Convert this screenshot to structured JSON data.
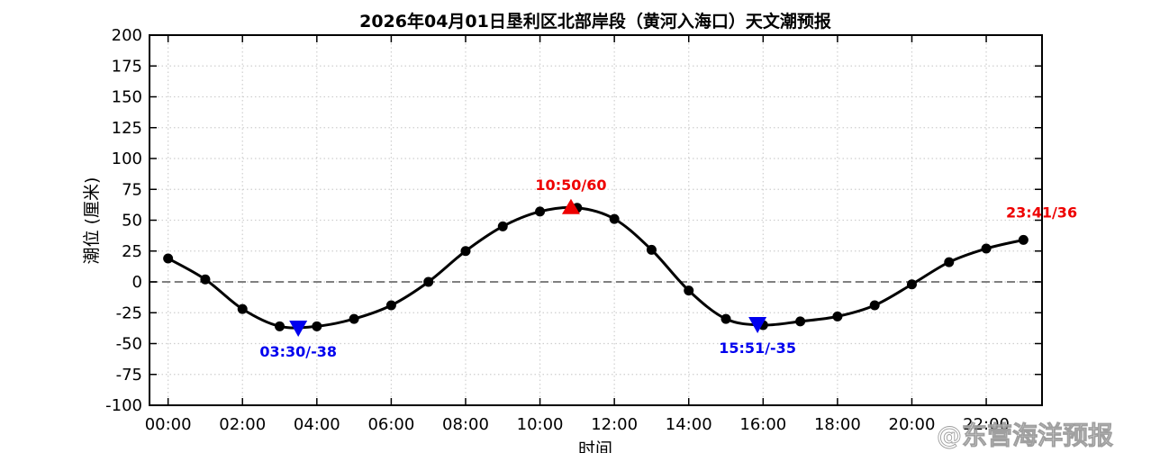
{
  "chart_data": {
    "type": "line",
    "title": "2026年04月01日垦利区北部岸段（黄河入海口）天文潮预报",
    "xlabel": "时间",
    "ylabel": "潮位 (厘米)",
    "xlim": [
      -0.5,
      23.5
    ],
    "ylim": [
      -100,
      200
    ],
    "x_ticks": [
      "00:00",
      "02:00",
      "04:00",
      "06:00",
      "08:00",
      "10:00",
      "12:00",
      "14:00",
      "16:00",
      "18:00",
      "20:00",
      "22:00"
    ],
    "x_tick_values": [
      0,
      2,
      4,
      6,
      8,
      10,
      12,
      14,
      16,
      18,
      20,
      22
    ],
    "y_ticks": [
      -100,
      -75,
      -50,
      -25,
      0,
      25,
      50,
      75,
      100,
      125,
      150,
      175,
      200
    ],
    "grid": true,
    "series": [
      {
        "type": "line",
        "color": "#000000",
        "marker": "circle",
        "x": [
          0,
          1,
          2,
          3,
          4,
          5,
          6,
          7,
          8,
          9,
          10,
          11,
          12,
          13,
          14,
          15,
          16,
          17,
          18,
          19,
          20,
          21,
          22,
          23
        ],
        "values": [
          19,
          2,
          -22,
          -36,
          -36,
          -30,
          -19,
          0,
          25,
          45,
          57,
          60,
          51,
          26,
          -7,
          -30,
          -35,
          -32,
          -28,
          -19,
          -2,
          16,
          27,
          34
        ]
      }
    ],
    "extrema": [
      {
        "kind": "low",
        "x": 3.5,
        "y": -38,
        "label": "03:30/-38",
        "color": "#0000ee",
        "marker": "triangle-down"
      },
      {
        "kind": "high",
        "x": 10.833,
        "y": 60,
        "label": "10:50/60",
        "color": "#ee0000",
        "marker": "triangle-up"
      },
      {
        "kind": "low",
        "x": 15.85,
        "y": -35,
        "label": "15:51/-35",
        "color": "#0000ee",
        "marker": "triangle-down"
      },
      {
        "kind": "end",
        "x": 23.683,
        "y": 36,
        "label": "23:41/36",
        "color": "#ee0000",
        "marker": "none"
      }
    ],
    "reference_line": {
      "y": 0,
      "style": "dashed",
      "color": "#808080"
    }
  },
  "watermark": {
    "text": "@东营海洋预报"
  }
}
